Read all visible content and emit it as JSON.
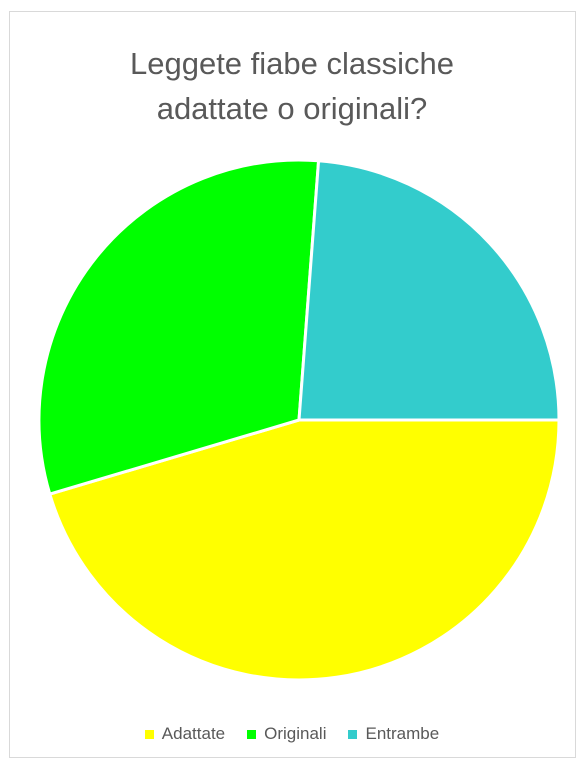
{
  "chart_data": {
    "type": "pie",
    "title": "Leggete fiabe classiche adattate o originali?",
    "title_lines": [
      "Leggete fiabe classiche",
      "adattate o originali?"
    ],
    "categories": [
      "Adattate",
      "Originali",
      "Entrambe"
    ],
    "values": [
      45.4,
      30.8,
      23.8
    ],
    "colors": [
      "#FFFF00",
      "#00FF00",
      "#33CCCC"
    ],
    "legend_position": "bottom",
    "start_angle_deg": 0,
    "direction": "clockwise"
  }
}
